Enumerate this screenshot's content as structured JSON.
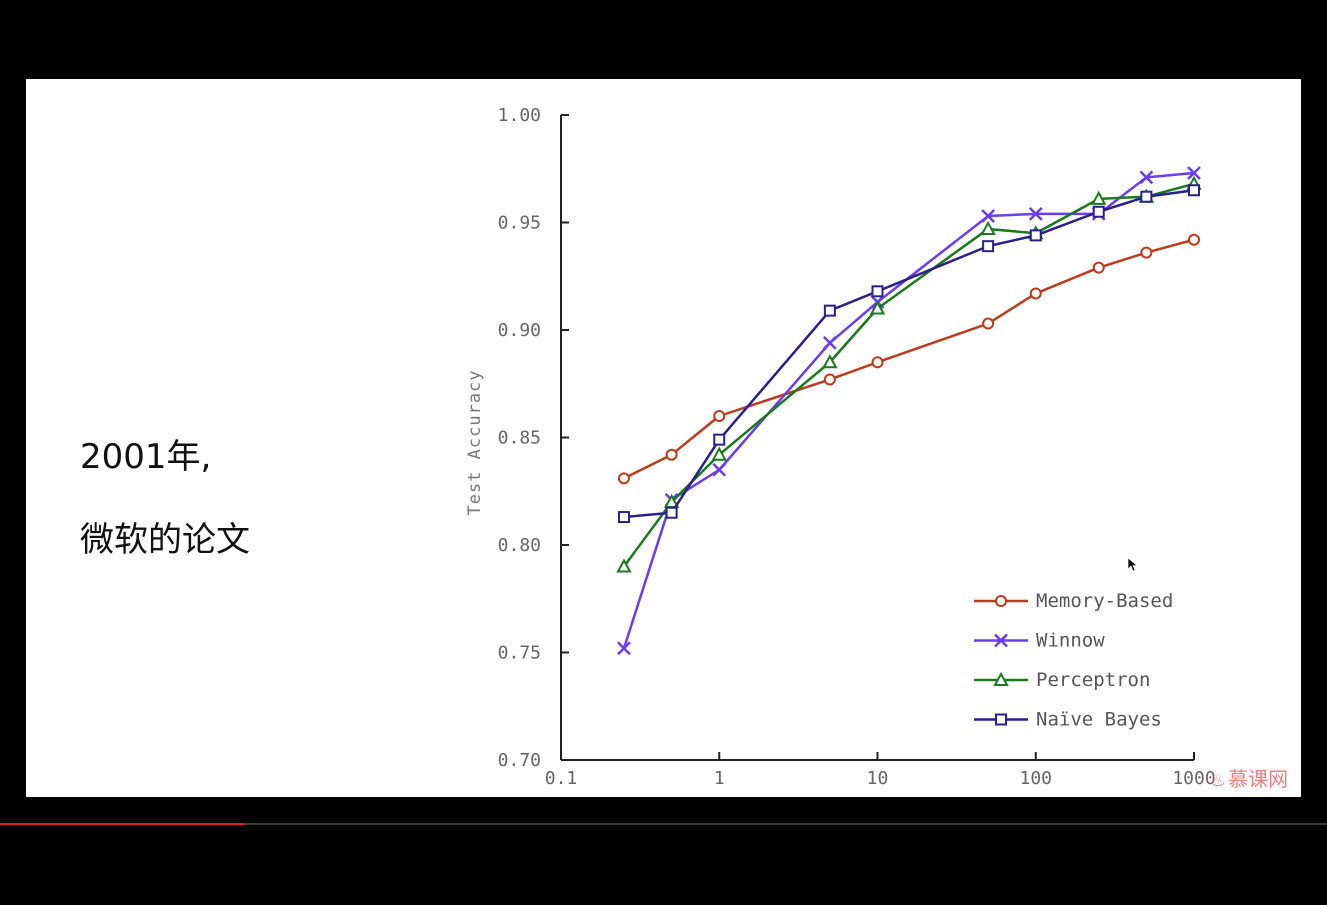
{
  "caption": {
    "year_text": "2001年,",
    "paper_text": "微软的论文"
  },
  "watermark": {
    "text": "慕课网"
  },
  "video": {
    "progress": 0.185
  },
  "colors": {
    "memory_based": "#c0391b",
    "winnow": "#6b3df0",
    "perceptron": "#1a7a1a",
    "naive_bayes": "#2a1f8f"
  },
  "chart_data": {
    "type": "line",
    "title": "",
    "xlabel": "",
    "ylabel": "Test Accuracy",
    "xscale": "log",
    "xlim": [
      0.1,
      1000
    ],
    "ylim": [
      0.7,
      1.0
    ],
    "xticks": [
      0.1,
      1,
      10,
      100,
      1000
    ],
    "xtick_labels": [
      "0.1",
      "1",
      "10",
      "100",
      "1000"
    ],
    "yticks": [
      0.7,
      0.75,
      0.8,
      0.85,
      0.9,
      0.95,
      1.0
    ],
    "ytick_labels": [
      "0.70",
      "0.75",
      "0.80",
      "0.85",
      "0.90",
      "0.95",
      "1.00"
    ],
    "grid": false,
    "legend_position": "bottom-right",
    "series": [
      {
        "name": "Memory-Based",
        "color": "#c0391b",
        "marker": "circle",
        "x": [
          0.25,
          0.5,
          1,
          5,
          10,
          50,
          100,
          250,
          500,
          1000
        ],
        "y": [
          0.831,
          0.842,
          0.86,
          0.877,
          0.885,
          0.903,
          0.917,
          0.929,
          0.936,
          0.942
        ]
      },
      {
        "name": "Winnow",
        "color": "#6b3df0",
        "marker": "x",
        "x": [
          0.25,
          0.5,
          1,
          5,
          10,
          50,
          100,
          250,
          500,
          1000
        ],
        "y": [
          0.752,
          0.821,
          0.835,
          0.894,
          0.913,
          0.953,
          0.954,
          0.954,
          0.971,
          0.973
        ]
      },
      {
        "name": "Perceptron",
        "color": "#1a7a1a",
        "marker": "triangle",
        "x": [
          0.25,
          0.5,
          1,
          5,
          10,
          50,
          100,
          250,
          500,
          1000
        ],
        "y": [
          0.79,
          0.82,
          0.842,
          0.885,
          0.91,
          0.947,
          0.945,
          0.961,
          0.962,
          0.968
        ]
      },
      {
        "name": "Naïve Bayes",
        "color": "#2a1f8f",
        "marker": "square",
        "x": [
          0.25,
          0.5,
          1,
          5,
          10,
          50,
          100,
          250,
          500,
          1000
        ],
        "y": [
          0.813,
          0.815,
          0.849,
          0.909,
          0.918,
          0.939,
          0.944,
          0.955,
          0.962,
          0.965
        ]
      }
    ]
  }
}
